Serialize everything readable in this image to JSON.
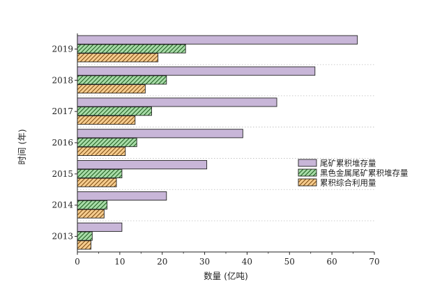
{
  "chart_data": {
    "type": "bar",
    "orientation": "horizontal",
    "categories": [
      "2013",
      "2014",
      "2015",
      "2016",
      "2017",
      "2018",
      "2019"
    ],
    "series": [
      {
        "name": "尾矿累积堆存量",
        "values": [
          10.5,
          21,
          30.5,
          39,
          47,
          56,
          66
        ],
        "color": "#c8b6d8",
        "pattern": "solid"
      },
      {
        "name": "黑色金属尾矿累积堆存量",
        "values": [
          3.5,
          7,
          10.5,
          14,
          17.5,
          21,
          25.5
        ],
        "color": "#a8dca8",
        "pattern": "hatch"
      },
      {
        "name": "累积综合利用量",
        "values": [
          3.2,
          6.3,
          9.2,
          11.3,
          13.6,
          16,
          19
        ],
        "color": "#f6cc8e",
        "pattern": "hatch"
      }
    ],
    "xlabel": "数量 (亿吨)",
    "ylabel": "时间 (年)",
    "xlim": [
      0,
      70
    ],
    "xticks": [
      "0",
      "10",
      "20",
      "30",
      "40",
      "50",
      "60",
      "70"
    ],
    "grid": "horizontal dotted",
    "legend_position": "right"
  }
}
